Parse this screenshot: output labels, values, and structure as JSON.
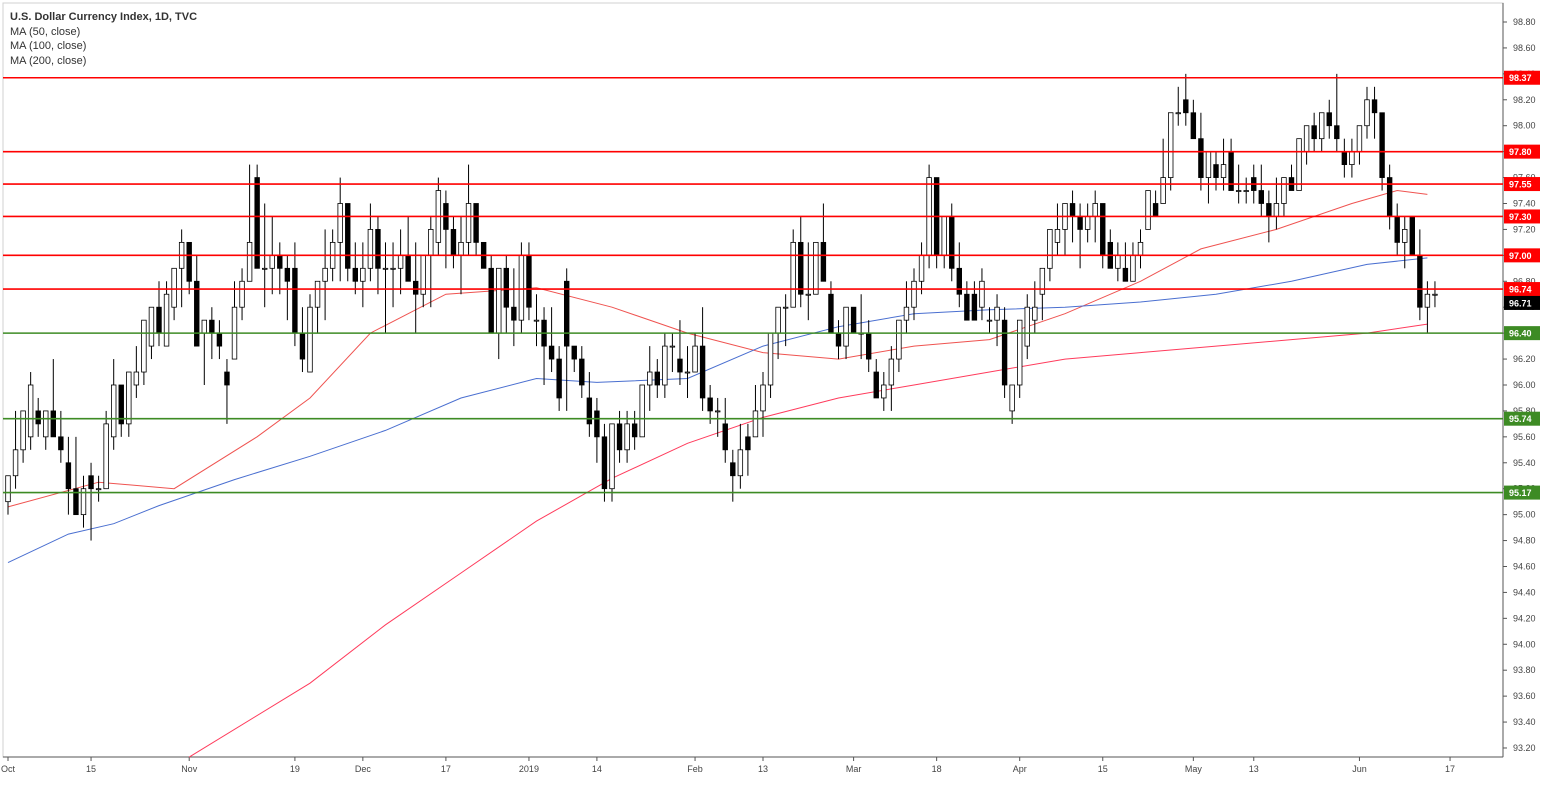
{
  "legend": {
    "title": "U.S. Dollar Currency Index, 1D, TVC",
    "ma50": "MA (50, close)",
    "ma100": "MA (100, close)",
    "ma200": "MA (200, close)"
  },
  "colors": {
    "up_body": "#ffffff",
    "down_body": "#000000",
    "resistance": "#ff0000",
    "support": "#3d8b24",
    "ma50": "#ef5350",
    "ma100": "#4a6fd0",
    "ma200": "#ff3b5c",
    "last_price": "#000000"
  },
  "chart_data": {
    "type": "candlestick",
    "title": "U.S. Dollar Currency Index, 1D, TVC",
    "ylim": [
      93.2,
      98.9
    ],
    "y_ticks": [
      "93.20",
      "93.40",
      "93.60",
      "93.80",
      "94.00",
      "94.20",
      "94.40",
      "94.60",
      "94.80",
      "95.00",
      "95.20",
      "95.40",
      "95.60",
      "95.80",
      "96.00",
      "96.20",
      "96.40",
      "96.60",
      "96.80",
      "97.00",
      "97.20",
      "97.40",
      "97.60",
      "97.80",
      "98.00",
      "98.20",
      "98.40",
      "98.60",
      "98.80"
    ],
    "x_ticks": [
      {
        "label": "Oct",
        "bar": 0
      },
      {
        "label": "15",
        "bar": 11
      },
      {
        "label": "Nov",
        "bar": 24
      },
      {
        "label": "19",
        "bar": 38
      },
      {
        "label": "Dec",
        "bar": 47
      },
      {
        "label": "17",
        "bar": 58
      },
      {
        "label": "2019",
        "bar": 69
      },
      {
        "label": "14",
        "bar": 78
      },
      {
        "label": "Feb",
        "bar": 91
      },
      {
        "label": "13",
        "bar": 100
      },
      {
        "label": "Mar",
        "bar": 112
      },
      {
        "label": "18",
        "bar": 123
      },
      {
        "label": "Apr",
        "bar": 134
      },
      {
        "label": "15",
        "bar": 145
      },
      {
        "label": "May",
        "bar": 157
      },
      {
        "label": "13",
        "bar": 165
      },
      {
        "label": "Jun",
        "bar": 179
      },
      {
        "label": "17",
        "bar": 191
      }
    ],
    "total_bars": 199,
    "horizontal_levels": [
      {
        "value": 98.37,
        "label": "98.37",
        "kind": "resistance"
      },
      {
        "value": 97.8,
        "label": "97.80",
        "kind": "resistance"
      },
      {
        "value": 97.55,
        "label": "97.55",
        "kind": "resistance"
      },
      {
        "value": 97.3,
        "label": "97.30",
        "kind": "resistance"
      },
      {
        "value": 97.0,
        "label": "97.00",
        "kind": "resistance"
      },
      {
        "value": 96.74,
        "label": "96.74",
        "kind": "resistance"
      },
      {
        "value": 96.4,
        "label": "96.40",
        "kind": "support"
      },
      {
        "value": 95.74,
        "label": "95.74",
        "kind": "support"
      },
      {
        "value": 95.17,
        "label": "95.17",
        "kind": "support"
      }
    ],
    "last_price": {
      "value": 96.71,
      "label": "96.71"
    },
    "ohlc_columns": [
      "open",
      "high",
      "low",
      "close"
    ],
    "candles": [
      [
        95.1,
        95.3,
        95.0,
        95.3
      ],
      [
        95.3,
        95.8,
        95.2,
        95.5
      ],
      [
        95.5,
        95.8,
        95.4,
        95.8
      ],
      [
        95.6,
        96.1,
        95.5,
        96.0
      ],
      [
        95.8,
        95.9,
        95.6,
        95.7
      ],
      [
        95.6,
        95.8,
        95.5,
        95.8
      ],
      [
        95.8,
        96.2,
        95.6,
        95.6
      ],
      [
        95.6,
        95.8,
        95.4,
        95.5
      ],
      [
        95.4,
        95.6,
        95.0,
        95.2
      ],
      [
        95.2,
        95.6,
        95.0,
        95.0
      ],
      [
        95.0,
        95.3,
        94.9,
        95.2
      ],
      [
        95.3,
        95.4,
        94.8,
        95.2
      ],
      [
        95.2,
        95.3,
        95.1,
        95.2
      ],
      [
        95.2,
        95.8,
        95.2,
        95.7
      ],
      [
        95.6,
        96.2,
        95.5,
        96.0
      ],
      [
        96.0,
        96.0,
        95.6,
        95.7
      ],
      [
        95.7,
        96.1,
        95.6,
        96.1
      ],
      [
        96.0,
        96.3,
        95.9,
        96.1
      ],
      [
        96.1,
        96.5,
        96.0,
        96.5
      ],
      [
        96.3,
        96.6,
        96.2,
        96.6
      ],
      [
        96.6,
        96.8,
        96.3,
        96.4
      ],
      [
        96.3,
        96.8,
        96.3,
        96.7
      ],
      [
        96.6,
        96.9,
        96.5,
        96.9
      ],
      [
        96.9,
        97.2,
        96.6,
        97.1
      ],
      [
        97.1,
        97.1,
        96.7,
        96.8
      ],
      [
        96.8,
        97.0,
        96.3,
        96.3
      ],
      [
        96.4,
        96.5,
        96.0,
        96.5
      ],
      [
        96.5,
        96.6,
        96.2,
        96.4
      ],
      [
        96.4,
        96.5,
        96.2,
        96.3
      ],
      [
        96.1,
        96.2,
        95.7,
        96.0
      ],
      [
        96.2,
        96.8,
        96.2,
        96.6
      ],
      [
        96.6,
        96.9,
        96.5,
        96.8
      ],
      [
        96.8,
        97.7,
        96.8,
        97.1
      ],
      [
        97.6,
        97.7,
        96.9,
        96.9
      ],
      [
        96.9,
        97.4,
        96.6,
        96.9
      ],
      [
        96.9,
        97.3,
        96.7,
        97.0
      ],
      [
        97.0,
        97.1,
        96.7,
        96.9
      ],
      [
        96.9,
        97.0,
        96.5,
        96.8
      ],
      [
        96.9,
        97.1,
        96.3,
        96.4
      ],
      [
        96.4,
        96.6,
        96.1,
        96.2
      ],
      [
        96.1,
        96.7,
        96.1,
        96.6
      ],
      [
        96.6,
        96.8,
        96.4,
        96.8
      ],
      [
        96.8,
        97.2,
        96.5,
        96.9
      ],
      [
        96.9,
        97.2,
        96.8,
        97.1
      ],
      [
        97.1,
        97.6,
        96.8,
        97.4
      ],
      [
        97.4,
        97.4,
        96.8,
        96.9
      ],
      [
        96.9,
        97.1,
        96.7,
        96.8
      ],
      [
        96.8,
        97.1,
        96.6,
        96.9
      ],
      [
        96.9,
        97.4,
        96.8,
        97.2
      ],
      [
        97.2,
        97.3,
        96.7,
        96.9
      ],
      [
        96.9,
        97.1,
        96.4,
        96.9
      ],
      [
        96.9,
        97.1,
        96.6,
        96.9
      ],
      [
        96.9,
        97.2,
        96.7,
        97.0
      ],
      [
        97.0,
        97.3,
        96.8,
        96.8
      ],
      [
        96.8,
        97.1,
        96.4,
        96.7
      ],
      [
        96.7,
        97.0,
        96.6,
        97.0
      ],
      [
        97.0,
        97.3,
        96.6,
        97.2
      ],
      [
        97.1,
        97.6,
        97.0,
        97.5
      ],
      [
        97.4,
        97.5,
        96.9,
        97.2
      ],
      [
        97.2,
        97.3,
        96.9,
        97.0
      ],
      [
        97.0,
        97.3,
        96.7,
        97.1
      ],
      [
        97.1,
        97.7,
        97.0,
        97.4
      ],
      [
        97.4,
        97.4,
        97.0,
        97.1
      ],
      [
        97.1,
        97.1,
        96.9,
        96.9
      ],
      [
        96.9,
        97.0,
        96.4,
        96.4
      ],
      [
        96.4,
        96.9,
        96.2,
        96.9
      ],
      [
        96.9,
        97.0,
        96.4,
        96.6
      ],
      [
        96.6,
        96.9,
        96.3,
        96.5
      ],
      [
        96.5,
        97.1,
        96.4,
        97.0
      ],
      [
        97.0,
        97.1,
        96.5,
        96.6
      ],
      [
        96.5,
        96.7,
        96.3,
        96.5
      ],
      [
        96.5,
        96.6,
        96.0,
        96.3
      ],
      [
        96.3,
        96.6,
        96.1,
        96.2
      ],
      [
        96.2,
        96.3,
        95.8,
        95.9
      ],
      [
        96.8,
        96.9,
        95.8,
        96.3
      ],
      [
        96.3,
        96.3,
        96.1,
        96.2
      ],
      [
        96.2,
        96.3,
        95.9,
        96.0
      ],
      [
        95.9,
        96.1,
        95.6,
        95.7
      ],
      [
        95.8,
        95.9,
        95.4,
        95.6
      ],
      [
        95.6,
        95.7,
        95.1,
        95.2
      ],
      [
        95.2,
        95.7,
        95.1,
        95.7
      ],
      [
        95.7,
        95.8,
        95.4,
        95.5
      ],
      [
        95.5,
        95.8,
        95.4,
        95.7
      ],
      [
        95.7,
        95.8,
        95.5,
        95.6
      ],
      [
        95.6,
        96.0,
        95.6,
        96.0
      ],
      [
        96.0,
        96.3,
        95.8,
        96.1
      ],
      [
        96.1,
        96.2,
        95.9,
        96.0
      ],
      [
        96.0,
        96.4,
        95.9,
        96.3
      ],
      [
        96.3,
        96.4,
        96.1,
        96.3
      ],
      [
        96.2,
        96.5,
        96.0,
        96.1
      ],
      [
        96.1,
        96.3,
        95.9,
        96.1
      ],
      [
        96.1,
        96.4,
        96.1,
        96.3
      ],
      [
        96.3,
        96.6,
        95.8,
        95.9
      ],
      [
        95.9,
        96.0,
        95.7,
        95.8
      ],
      [
        95.8,
        95.9,
        95.6,
        95.8
      ],
      [
        95.7,
        95.9,
        95.4,
        95.5
      ],
      [
        95.4,
        95.5,
        95.1,
        95.3
      ],
      [
        95.3,
        95.7,
        95.2,
        95.5
      ],
      [
        95.6,
        95.7,
        95.3,
        95.5
      ],
      [
        95.6,
        96.0,
        95.6,
        95.8
      ],
      [
        95.8,
        96.1,
        95.6,
        96.0
      ],
      [
        96.0,
        96.4,
        95.9,
        96.4
      ],
      [
        96.4,
        96.6,
        96.2,
        96.6
      ],
      [
        96.6,
        96.7,
        96.3,
        96.6
      ],
      [
        96.6,
        97.2,
        96.6,
        97.1
      ],
      [
        97.1,
        97.3,
        96.6,
        96.7
      ],
      [
        96.7,
        97.1,
        96.5,
        96.7
      ],
      [
        96.7,
        97.1,
        96.7,
        97.1
      ],
      [
        97.1,
        97.4,
        96.8,
        96.8
      ],
      [
        96.7,
        96.8,
        96.4,
        96.4
      ],
      [
        96.4,
        96.5,
        96.2,
        96.3
      ],
      [
        96.3,
        96.6,
        96.2,
        96.6
      ],
      [
        96.6,
        96.6,
        96.4,
        96.4
      ],
      [
        96.4,
        96.7,
        96.2,
        96.4
      ],
      [
        96.4,
        96.5,
        96.1,
        96.2
      ],
      [
        96.1,
        96.2,
        95.9,
        95.9
      ],
      [
        95.9,
        96.1,
        95.8,
        96.0
      ],
      [
        96.0,
        96.3,
        95.8,
        96.2
      ],
      [
        96.2,
        96.5,
        96.1,
        96.5
      ],
      [
        96.5,
        96.8,
        96.4,
        96.6
      ],
      [
        96.6,
        96.9,
        96.5,
        96.8
      ],
      [
        96.8,
        97.1,
        96.7,
        97.0
      ],
      [
        97.0,
        97.7,
        96.9,
        97.6
      ],
      [
        97.6,
        97.6,
        96.9,
        97.0
      ],
      [
        97.0,
        97.3,
        96.9,
        97.3
      ],
      [
        97.3,
        97.4,
        96.8,
        96.9
      ],
      [
        96.9,
        97.1,
        96.6,
        96.7
      ],
      [
        96.7,
        96.8,
        96.5,
        96.5
      ],
      [
        96.7,
        96.8,
        96.5,
        96.5
      ],
      [
        96.6,
        96.9,
        96.5,
        96.8
      ],
      [
        96.5,
        96.6,
        96.4,
        96.5
      ],
      [
        96.5,
        96.7,
        96.3,
        96.6
      ],
      [
        96.5,
        96.6,
        95.9,
        96.0
      ],
      [
        95.8,
        96.0,
        95.7,
        96.0
      ],
      [
        96.0,
        96.5,
        95.9,
        96.5
      ],
      [
        96.3,
        96.7,
        96.2,
        96.6
      ],
      [
        96.5,
        96.8,
        96.4,
        96.6
      ],
      [
        96.7,
        96.9,
        96.5,
        96.9
      ],
      [
        96.9,
        97.2,
        96.8,
        97.2
      ],
      [
        97.1,
        97.4,
        97.0,
        97.2
      ],
      [
        97.2,
        97.4,
        97.0,
        97.4
      ],
      [
        97.4,
        97.5,
        97.1,
        97.3
      ],
      [
        97.3,
        97.4,
        96.9,
        97.2
      ],
      [
        97.2,
        97.4,
        97.1,
        97.3
      ],
      [
        97.3,
        97.5,
        97.1,
        97.4
      ],
      [
        97.4,
        97.4,
        96.9,
        97.0
      ],
      [
        97.1,
        97.2,
        96.9,
        96.9
      ],
      [
        96.9,
        97.1,
        96.8,
        97.0
      ],
      [
        96.9,
        97.1,
        96.8,
        96.8
      ],
      [
        96.8,
        97.1,
        96.8,
        97.0
      ],
      [
        97.0,
        97.2,
        96.9,
        97.1
      ],
      [
        97.2,
        97.5,
        97.2,
        97.5
      ],
      [
        97.4,
        97.5,
        97.3,
        97.3
      ],
      [
        97.4,
        97.9,
        97.4,
        97.6
      ],
      [
        97.6,
        98.1,
        97.5,
        98.1
      ],
      [
        98.1,
        98.3,
        98.0,
        98.1
      ],
      [
        98.2,
        98.4,
        98.0,
        98.1
      ],
      [
        98.1,
        98.2,
        97.9,
        97.9
      ],
      [
        97.9,
        98.1,
        97.5,
        97.6
      ],
      [
        97.6,
        97.8,
        97.4,
        97.8
      ],
      [
        97.7,
        97.8,
        97.5,
        97.6
      ],
      [
        97.6,
        97.9,
        97.5,
        97.7
      ],
      [
        97.8,
        97.9,
        97.5,
        97.5
      ],
      [
        97.5,
        97.7,
        97.4,
        97.5
      ],
      [
        97.5,
        97.6,
        97.4,
        97.5
      ],
      [
        97.6,
        97.7,
        97.4,
        97.5
      ],
      [
        97.5,
        97.7,
        97.3,
        97.4
      ],
      [
        97.4,
        97.5,
        97.1,
        97.3
      ],
      [
        97.3,
        97.6,
        97.2,
        97.4
      ],
      [
        97.4,
        97.6,
        97.3,
        97.6
      ],
      [
        97.6,
        97.7,
        97.5,
        97.5
      ],
      [
        97.5,
        97.9,
        97.5,
        97.9
      ],
      [
        97.8,
        98.0,
        97.7,
        98.0
      ],
      [
        98.0,
        98.1,
        97.8,
        97.9
      ],
      [
        97.9,
        98.1,
        97.8,
        98.1
      ],
      [
        98.1,
        98.2,
        97.9,
        98.0
      ],
      [
        98.0,
        98.4,
        97.8,
        97.9
      ],
      [
        97.8,
        97.9,
        97.6,
        97.7
      ],
      [
        97.7,
        97.9,
        97.6,
        97.8
      ],
      [
        97.8,
        98.0,
        97.7,
        98.0
      ],
      [
        98.0,
        98.3,
        97.9,
        98.2
      ],
      [
        98.2,
        98.3,
        97.9,
        98.1
      ],
      [
        98.1,
        98.1,
        97.5,
        97.6
      ],
      [
        97.6,
        97.7,
        97.2,
        97.3
      ],
      [
        97.3,
        97.4,
        97.0,
        97.1
      ],
      [
        97.1,
        97.3,
        96.9,
        97.2
      ],
      [
        97.3,
        97.3,
        97.0,
        97.0
      ],
      [
        97.0,
        97.2,
        96.5,
        96.6
      ],
      [
        96.6,
        96.8,
        96.4,
        96.7
      ],
      [
        96.7,
        96.8,
        96.6,
        96.7
      ]
    ],
    "ma50_points": [
      [
        0,
        95.06
      ],
      [
        12,
        95.25
      ],
      [
        22,
        95.2
      ],
      [
        33,
        95.6
      ],
      [
        40,
        95.9
      ],
      [
        48,
        96.4
      ],
      [
        58,
        96.7
      ],
      [
        70,
        96.75
      ],
      [
        80,
        96.6
      ],
      [
        90,
        96.4
      ],
      [
        100,
        96.25
      ],
      [
        110,
        96.2
      ],
      [
        120,
        96.3
      ],
      [
        130,
        96.35
      ],
      [
        140,
        96.55
      ],
      [
        150,
        96.8
      ],
      [
        158,
        97.05
      ],
      [
        168,
        97.2
      ],
      [
        178,
        97.4
      ],
      [
        184,
        97.5
      ],
      [
        188,
        97.47
      ]
    ],
    "ma100_points": [
      [
        0,
        94.63
      ],
      [
        8,
        94.85
      ],
      [
        14,
        94.93
      ],
      [
        20,
        95.07
      ],
      [
        30,
        95.27
      ],
      [
        40,
        95.45
      ],
      [
        50,
        95.65
      ],
      [
        60,
        95.9
      ],
      [
        70,
        96.05
      ],
      [
        78,
        96.02
      ],
      [
        90,
        96.05
      ],
      [
        100,
        96.3
      ],
      [
        110,
        96.45
      ],
      [
        120,
        96.55
      ],
      [
        130,
        96.58
      ],
      [
        140,
        96.6
      ],
      [
        150,
        96.64
      ],
      [
        160,
        96.7
      ],
      [
        170,
        96.8
      ],
      [
        180,
        96.93
      ],
      [
        188,
        96.98
      ]
    ],
    "ma200_points": [
      [
        24,
        93.13
      ],
      [
        40,
        93.7
      ],
      [
        50,
        94.15
      ],
      [
        60,
        94.55
      ],
      [
        70,
        94.95
      ],
      [
        80,
        95.28
      ],
      [
        90,
        95.55
      ],
      [
        100,
        95.75
      ],
      [
        110,
        95.9
      ],
      [
        120,
        96.0
      ],
      [
        130,
        96.1
      ],
      [
        140,
        96.2
      ],
      [
        150,
        96.25
      ],
      [
        160,
        96.3
      ],
      [
        170,
        96.35
      ],
      [
        180,
        96.4
      ],
      [
        188,
        96.47
      ]
    ]
  }
}
